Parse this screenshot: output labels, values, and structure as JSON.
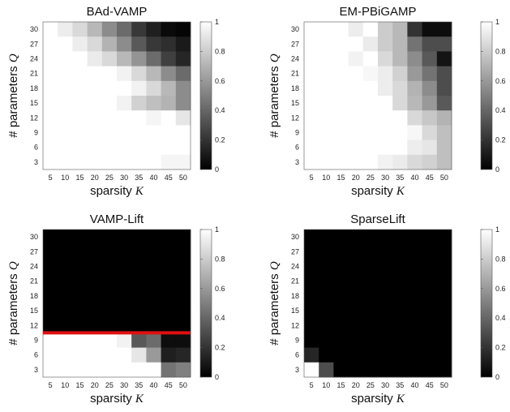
{
  "chart_data": [
    {
      "type": "heatmap",
      "title": "BAd-VAMP",
      "xlabel": "sparsity K",
      "ylabel": "# parameters Q",
      "x": [
        5,
        10,
        15,
        20,
        25,
        30,
        35,
        40,
        45,
        50
      ],
      "y": [
        30,
        27,
        24,
        21,
        18,
        15,
        12,
        9,
        6,
        3
      ],
      "zlim": [
        0,
        1
      ],
      "colormap": "gray",
      "colorbar_ticks": [
        "0",
        "0.2",
        "0.4",
        "0.6",
        "0.8",
        "1"
      ],
      "values": [
        [
          1,
          0.93,
          0.85,
          0.72,
          0.55,
          0.42,
          0.22,
          0.12,
          0.04,
          0.02
        ],
        [
          1,
          1,
          0.93,
          0.85,
          0.7,
          0.55,
          0.35,
          0.22,
          0.18,
          0.1
        ],
        [
          1,
          1,
          1,
          0.92,
          0.85,
          0.72,
          0.58,
          0.42,
          0.25,
          0.15
        ],
        [
          1,
          1,
          1,
          1,
          1,
          0.95,
          0.85,
          0.72,
          0.55,
          0.42
        ],
        [
          1,
          1,
          1,
          1,
          1,
          1,
          0.95,
          0.85,
          0.72,
          0.55
        ],
        [
          1,
          1,
          1,
          1,
          1,
          0.95,
          0.82,
          0.75,
          0.7,
          0.55
        ],
        [
          1,
          1,
          1,
          1,
          1,
          1,
          1,
          0.96,
          1,
          0.9
        ],
        [
          1,
          1,
          1,
          1,
          1,
          1,
          1,
          1,
          1,
          1
        ],
        [
          1,
          1,
          1,
          1,
          1,
          1,
          1,
          1,
          1,
          1
        ],
        [
          1,
          1,
          1,
          1,
          1,
          1,
          1,
          1,
          0.96,
          0.96
        ]
      ]
    },
    {
      "type": "heatmap",
      "title": "EM-PBiGAMP",
      "xlabel": "sparsity K",
      "ylabel": "# parameters Q",
      "x": [
        5,
        10,
        15,
        20,
        25,
        30,
        35,
        40,
        45,
        50
      ],
      "y": [
        30,
        27,
        24,
        21,
        18,
        15,
        12,
        9,
        6,
        3
      ],
      "zlim": [
        0,
        1
      ],
      "colormap": "gray",
      "colorbar_ticks": [
        "0",
        "0.2",
        "0.4",
        "0.6",
        "0.8",
        "1"
      ],
      "values": [
        [
          1,
          1,
          1,
          0.93,
          1,
          0.8,
          0.72,
          0.2,
          0.05,
          0.05
        ],
        [
          1,
          1,
          1,
          1,
          0.92,
          0.8,
          0.72,
          0.45,
          0.3,
          0.3
        ],
        [
          1,
          1,
          1,
          0.95,
          1,
          0.85,
          0.72,
          0.55,
          0.35,
          0.08
        ],
        [
          1,
          1,
          1,
          1,
          0.97,
          0.93,
          0.82,
          0.6,
          0.45,
          0.3
        ],
        [
          1,
          1,
          1,
          1,
          1,
          0.93,
          0.85,
          0.7,
          0.55,
          0.3
        ],
        [
          1,
          1,
          1,
          1,
          1,
          1,
          0.85,
          0.72,
          0.6,
          0.35
        ],
        [
          1,
          1,
          1,
          1,
          1,
          1,
          1,
          0.85,
          0.78,
          0.7
        ],
        [
          1,
          1,
          1,
          1,
          1,
          1,
          1,
          0.97,
          0.85,
          0.75
        ],
        [
          1,
          1,
          1,
          1,
          1,
          1,
          1,
          0.93,
          0.9,
          0.75
        ],
        [
          1,
          1,
          1,
          1,
          1,
          0.95,
          0.92,
          0.85,
          0.82,
          0.75
        ]
      ]
    },
    {
      "type": "heatmap",
      "title": "VAMP-Lift",
      "xlabel": "sparsity K",
      "ylabel": "# parameters Q",
      "x": [
        5,
        10,
        15,
        20,
        25,
        30,
        35,
        40,
        45,
        50
      ],
      "y": [
        30,
        27,
        24,
        21,
        18,
        15,
        12,
        9,
        6,
        3
      ],
      "zlim": [
        0,
        1
      ],
      "colormap": "gray",
      "colorbar_ticks": [
        "0",
        "0.2",
        "0.4",
        "0.6",
        "0.8",
        "1"
      ],
      "red_line_at_Q": 10.5,
      "values": [
        [
          0,
          0,
          0,
          0,
          0,
          0,
          0,
          0,
          0,
          0
        ],
        [
          0,
          0,
          0,
          0,
          0,
          0,
          0,
          0,
          0,
          0
        ],
        [
          0,
          0,
          0,
          0,
          0,
          0,
          0,
          0,
          0,
          0
        ],
        [
          0,
          0,
          0,
          0,
          0,
          0,
          0,
          0,
          0,
          0
        ],
        [
          0,
          0,
          0,
          0,
          0,
          0,
          0,
          0,
          0,
          0
        ],
        [
          0,
          0,
          0,
          0,
          0,
          0,
          0,
          0,
          0,
          0
        ],
        [
          0,
          0,
          0,
          0,
          0,
          0,
          0,
          0,
          0,
          0
        ],
        [
          1,
          1,
          1,
          1,
          1,
          0.95,
          0.35,
          0.42,
          0.05,
          0.05
        ],
        [
          1,
          1,
          1,
          1,
          1,
          1,
          0.9,
          0.6,
          0.12,
          0.15
        ],
        [
          1,
          1,
          1,
          1,
          1,
          1,
          1,
          1,
          0.45,
          0.5
        ]
      ]
    },
    {
      "type": "heatmap",
      "title": "SparseLift",
      "xlabel": "sparsity K",
      "ylabel": "# parameters Q",
      "x": [
        5,
        10,
        15,
        20,
        25,
        30,
        35,
        40,
        45,
        50
      ],
      "y": [
        30,
        27,
        24,
        21,
        18,
        15,
        12,
        9,
        6,
        3
      ],
      "zlim": [
        0,
        1
      ],
      "colormap": "gray",
      "colorbar_ticks": [
        "0",
        "0.2",
        "0.4",
        "0.6",
        "0.8",
        "1"
      ],
      "values": [
        [
          0,
          0,
          0,
          0,
          0,
          0,
          0,
          0,
          0,
          0
        ],
        [
          0,
          0,
          0,
          0,
          0,
          0,
          0,
          0,
          0,
          0
        ],
        [
          0,
          0,
          0,
          0,
          0,
          0,
          0,
          0,
          0,
          0
        ],
        [
          0,
          0,
          0,
          0,
          0,
          0,
          0,
          0,
          0,
          0
        ],
        [
          0,
          0,
          0,
          0,
          0,
          0,
          0,
          0,
          0,
          0
        ],
        [
          0,
          0,
          0,
          0,
          0,
          0,
          0,
          0,
          0,
          0
        ],
        [
          0,
          0,
          0,
          0,
          0,
          0,
          0,
          0,
          0,
          0
        ],
        [
          0,
          0,
          0,
          0,
          0,
          0,
          0,
          0,
          0,
          0
        ],
        [
          0.15,
          0,
          0,
          0,
          0,
          0,
          0,
          0,
          0,
          0
        ],
        [
          1,
          0.3,
          0,
          0,
          0,
          0,
          0,
          0,
          0,
          0
        ]
      ]
    }
  ]
}
